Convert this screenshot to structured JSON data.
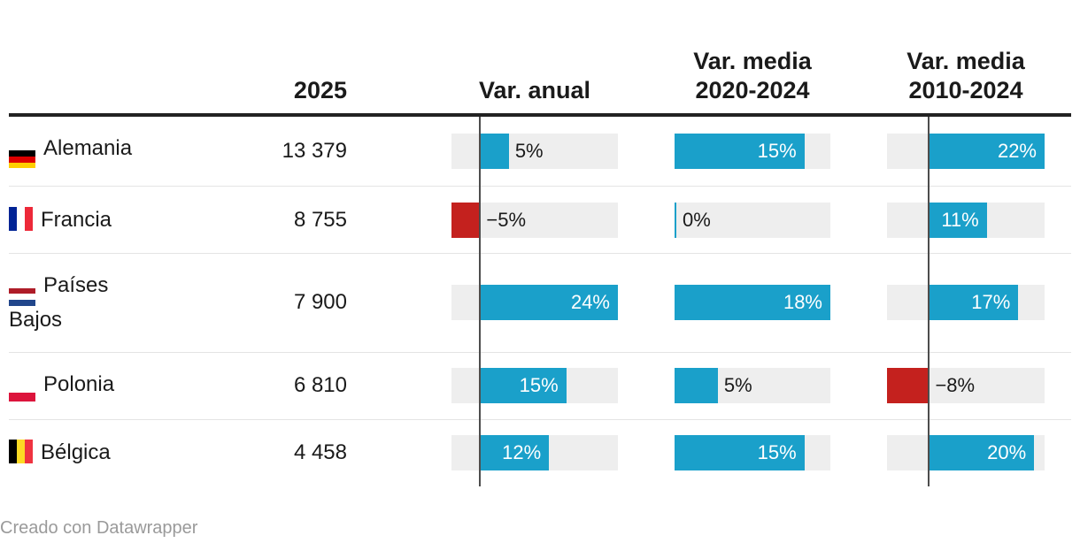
{
  "meta": {
    "footer_credit": "Creado con Datawrapper"
  },
  "colors": {
    "positive_bar": "#1aa0ca",
    "negative_bar": "#c4211e",
    "bar_track": "#eeeeee",
    "zero_line": "#4d4d4d",
    "text": "#1a1a1a",
    "header_rule": "#222222",
    "row_divider": "#e4e4e4",
    "footer_text": "#9a9a9a",
    "inside_label": "#ffffff"
  },
  "chart_data": {
    "type": "table",
    "title": "",
    "layout_hint": "table with inline bar columns, zero axis line drawn for columns containing negative values",
    "categories": [
      "Alemania",
      "Francia",
      "Países Bajos",
      "Polonia",
      "Bélgica"
    ],
    "columns": [
      {
        "id": "value_2025",
        "label": "2025"
      },
      {
        "id": "var_anual",
        "label": "Var. anual"
      },
      {
        "id": "var_media_2020_2024",
        "label": "Var. media 2020-2024",
        "lines": [
          "Var. media",
          "2020-2024"
        ]
      },
      {
        "id": "var_media_2010_2024",
        "label": "Var. media 2010-2024",
        "lines": [
          "Var. media",
          "2010-2024"
        ]
      }
    ],
    "rows": [
      {
        "country": "Alemania",
        "flag": {
          "name": "germany-flag",
          "orientation": "horizontal",
          "stripes": [
            "#000000",
            "#dd0000",
            "#ffce00"
          ]
        },
        "value_2025": "13 379",
        "bars": [
          {
            "value": 5,
            "label": "5%"
          },
          {
            "value": 15,
            "label": "15%"
          },
          {
            "value": 22,
            "label": "22%"
          }
        ]
      },
      {
        "country": "Francia",
        "flag": {
          "name": "france-flag",
          "orientation": "vertical",
          "stripes": [
            "#002395",
            "#ffffff",
            "#ed2939"
          ]
        },
        "value_2025": "8 755",
        "bars": [
          {
            "value": -5,
            "label": "−5%"
          },
          {
            "value": 0,
            "label": "0%"
          },
          {
            "value": 11,
            "label": "11%"
          }
        ]
      },
      {
        "country": "Países Bajos",
        "flag": {
          "name": "netherlands-flag",
          "orientation": "horizontal",
          "stripes": [
            "#ae1c28",
            "#ffffff",
            "#21468b"
          ]
        },
        "value_2025": "7 900",
        "bars": [
          {
            "value": 24,
            "label": "24%"
          },
          {
            "value": 18,
            "label": "18%"
          },
          {
            "value": 17,
            "label": "17%"
          }
        ]
      },
      {
        "country": "Polonia",
        "flag": {
          "name": "poland-flag",
          "orientation": "horizontal",
          "stripes": [
            "#ffffff",
            "#dc143c"
          ]
        },
        "value_2025": "6 810",
        "bars": [
          {
            "value": 15,
            "label": "15%"
          },
          {
            "value": 5,
            "label": "5%"
          },
          {
            "value": -8,
            "label": "−8%"
          }
        ]
      },
      {
        "country": "Bélgica",
        "flag": {
          "name": "belgium-flag",
          "orientation": "vertical",
          "stripes": [
            "#000000",
            "#fdda24",
            "#ef3340"
          ]
        },
        "value_2025": "4 458",
        "bars": [
          {
            "value": 12,
            "label": "12%"
          },
          {
            "value": 15,
            "label": "15%"
          },
          {
            "value": 20,
            "label": "20%"
          }
        ]
      }
    ]
  }
}
